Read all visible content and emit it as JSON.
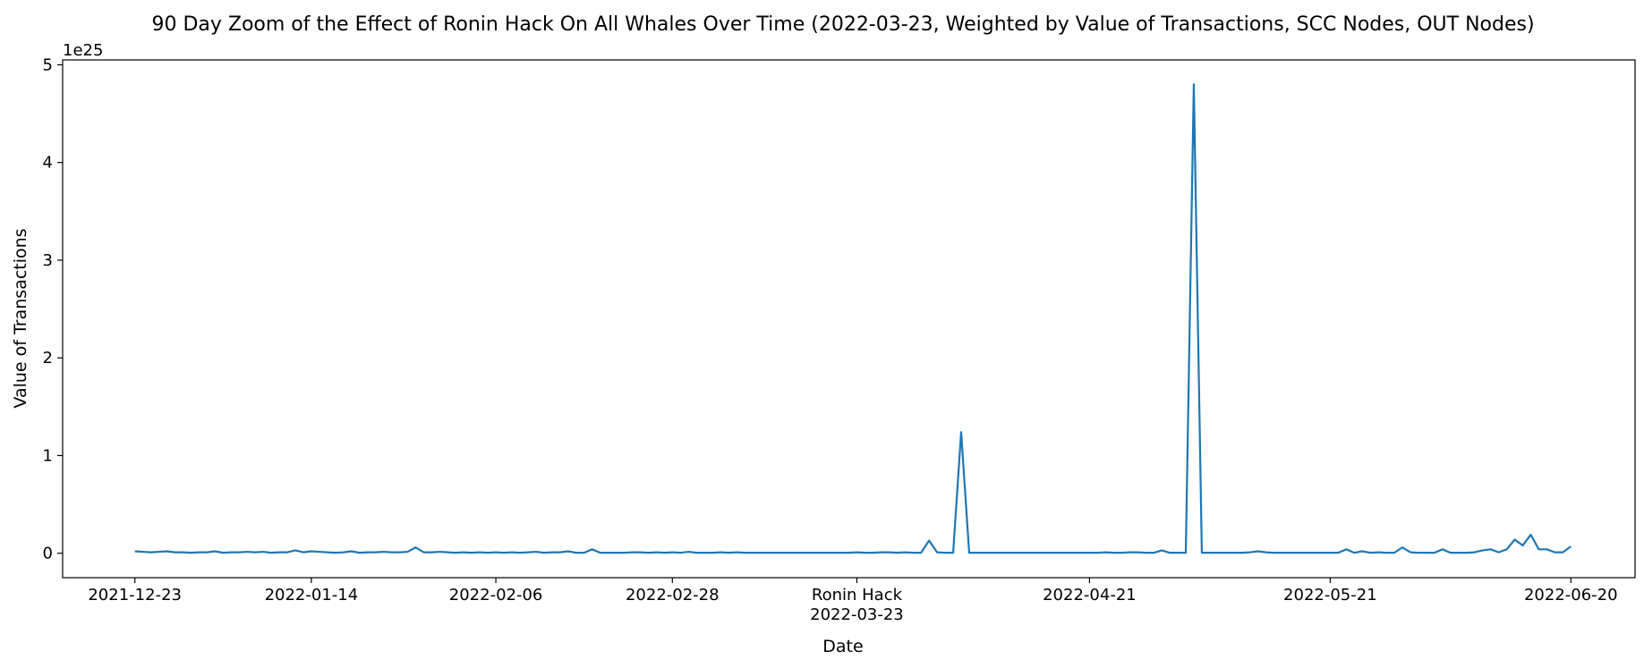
{
  "chart_data": {
    "type": "line",
    "title": "90 Day Zoom of the Effect of Ronin Hack On All Whales Over Time (2022-03-23, Weighted by Value of Transactions, SCC Nodes, OUT Nodes)",
    "xlabel": "Date",
    "ylabel": "Value of Transactions",
    "y_offset_text": "1e25",
    "y_scale_exponent": 25,
    "x_range": [
      "2021-12-14",
      "2022-06-28"
    ],
    "ylim": [
      -0.25,
      5.05
    ],
    "y_ticks": [
      0,
      1,
      2,
      3,
      4,
      5
    ],
    "x_ticks": [
      {
        "date": "2021-12-23",
        "label": "2021-12-23"
      },
      {
        "date": "2022-01-14",
        "label": "2022-01-14"
      },
      {
        "date": "2022-02-06",
        "label": "2022-02-06"
      },
      {
        "date": "2022-02-28",
        "label": "2022-02-28"
      },
      {
        "date": "2022-03-23",
        "label": "2022-03-23"
      },
      {
        "date": "2022-04-21",
        "label": "2022-04-21"
      },
      {
        "date": "2022-05-21",
        "label": "2022-05-21"
      },
      {
        "date": "2022-06-20",
        "label": "2022-06-20"
      }
    ],
    "annotation": {
      "date": "2022-03-23",
      "label": "Ronin Hack"
    },
    "grid": false,
    "legend": "none",
    "series": [
      {
        "color": "#1f77b4",
        "points": [
          [
            "2021-12-23",
            0.02
          ],
          [
            "2021-12-24",
            0.015
          ],
          [
            "2021-12-25",
            0.01
          ],
          [
            "2021-12-26",
            0.015
          ],
          [
            "2021-12-27",
            0.02
          ],
          [
            "2021-12-28",
            0.01
          ],
          [
            "2021-12-29",
            0.01
          ],
          [
            "2021-12-30",
            0.005
          ],
          [
            "2021-12-31",
            0.01
          ],
          [
            "2022-01-01",
            0.01
          ],
          [
            "2022-01-02",
            0.02
          ],
          [
            "2022-01-03",
            0.005
          ],
          [
            "2022-01-04",
            0.01
          ],
          [
            "2022-01-05",
            0.01
          ],
          [
            "2022-01-06",
            0.015
          ],
          [
            "2022-01-07",
            0.01
          ],
          [
            "2022-01-08",
            0.015
          ],
          [
            "2022-01-09",
            0.005
          ],
          [
            "2022-01-10",
            0.01
          ],
          [
            "2022-01-11",
            0.01
          ],
          [
            "2022-01-12",
            0.03
          ],
          [
            "2022-01-13",
            0.01
          ],
          [
            "2022-01-14",
            0.02
          ],
          [
            "2022-01-15",
            0.015
          ],
          [
            "2022-01-16",
            0.01
          ],
          [
            "2022-01-17",
            0.005
          ],
          [
            "2022-01-18",
            0.01
          ],
          [
            "2022-01-19",
            0.02
          ],
          [
            "2022-01-20",
            0.005
          ],
          [
            "2022-01-21",
            0.01
          ],
          [
            "2022-01-22",
            0.01
          ],
          [
            "2022-01-23",
            0.015
          ],
          [
            "2022-01-24",
            0.01
          ],
          [
            "2022-01-25",
            0.01
          ],
          [
            "2022-01-26",
            0.015
          ],
          [
            "2022-01-27",
            0.06
          ],
          [
            "2022-01-28",
            0.01
          ],
          [
            "2022-01-29",
            0.01
          ],
          [
            "2022-01-30",
            0.015
          ],
          [
            "2022-01-31",
            0.01
          ],
          [
            "2022-02-01",
            0.005
          ],
          [
            "2022-02-02",
            0.01
          ],
          [
            "2022-02-03",
            0.005
          ],
          [
            "2022-02-04",
            0.01
          ],
          [
            "2022-02-05",
            0.005
          ],
          [
            "2022-02-06",
            0.01
          ],
          [
            "2022-02-07",
            0.005
          ],
          [
            "2022-02-08",
            0.01
          ],
          [
            "2022-02-09",
            0.005
          ],
          [
            "2022-02-10",
            0.01
          ],
          [
            "2022-02-11",
            0.015
          ],
          [
            "2022-02-12",
            0.005
          ],
          [
            "2022-02-13",
            0.01
          ],
          [
            "2022-02-14",
            0.01
          ],
          [
            "2022-02-15",
            0.02
          ],
          [
            "2022-02-16",
            0.005
          ],
          [
            "2022-02-17",
            0.005
          ],
          [
            "2022-02-18",
            0.04
          ],
          [
            "2022-02-19",
            0.005
          ],
          [
            "2022-02-20",
            0.005
          ],
          [
            "2022-02-21",
            0.005
          ],
          [
            "2022-02-22",
            0.005
          ],
          [
            "2022-02-23",
            0.01
          ],
          [
            "2022-02-24",
            0.01
          ],
          [
            "2022-02-25",
            0.005
          ],
          [
            "2022-02-26",
            0.01
          ],
          [
            "2022-02-27",
            0.005
          ],
          [
            "2022-02-28",
            0.01
          ],
          [
            "2022-03-01",
            0.005
          ],
          [
            "2022-03-02",
            0.015
          ],
          [
            "2022-03-03",
            0.005
          ],
          [
            "2022-03-04",
            0.005
          ],
          [
            "2022-03-05",
            0.005
          ],
          [
            "2022-03-06",
            0.01
          ],
          [
            "2022-03-07",
            0.005
          ],
          [
            "2022-03-08",
            0.01
          ],
          [
            "2022-03-09",
            0.005
          ],
          [
            "2022-03-10",
            0.005
          ],
          [
            "2022-03-11",
            0.005
          ],
          [
            "2022-03-12",
            0.005
          ],
          [
            "2022-03-13",
            0.005
          ],
          [
            "2022-03-14",
            0.005
          ],
          [
            "2022-03-15",
            0.005
          ],
          [
            "2022-03-16",
            0.005
          ],
          [
            "2022-03-17",
            0.005
          ],
          [
            "2022-03-18",
            0.005
          ],
          [
            "2022-03-19",
            0.005
          ],
          [
            "2022-03-20",
            0.005
          ],
          [
            "2022-03-21",
            0.005
          ],
          [
            "2022-03-22",
            0.005
          ],
          [
            "2022-03-23",
            0.01
          ],
          [
            "2022-03-24",
            0.005
          ],
          [
            "2022-03-25",
            0.005
          ],
          [
            "2022-03-26",
            0.01
          ],
          [
            "2022-03-27",
            0.01
          ],
          [
            "2022-03-28",
            0.005
          ],
          [
            "2022-03-29",
            0.01
          ],
          [
            "2022-03-30",
            0.005
          ],
          [
            "2022-03-31",
            0.005
          ],
          [
            "2022-04-01",
            0.13
          ],
          [
            "2022-04-02",
            0.01
          ],
          [
            "2022-04-03",
            0.005
          ],
          [
            "2022-04-04",
            0.005
          ],
          [
            "2022-04-05",
            1.24
          ],
          [
            "2022-04-06",
            0.005
          ],
          [
            "2022-04-07",
            0.005
          ],
          [
            "2022-04-08",
            0.005
          ],
          [
            "2022-04-09",
            0.005
          ],
          [
            "2022-04-10",
            0.005
          ],
          [
            "2022-04-11",
            0.005
          ],
          [
            "2022-04-12",
            0.005
          ],
          [
            "2022-04-13",
            0.005
          ],
          [
            "2022-04-14",
            0.005
          ],
          [
            "2022-04-15",
            0.005
          ],
          [
            "2022-04-16",
            0.005
          ],
          [
            "2022-04-17",
            0.005
          ],
          [
            "2022-04-18",
            0.005
          ],
          [
            "2022-04-19",
            0.005
          ],
          [
            "2022-04-20",
            0.005
          ],
          [
            "2022-04-21",
            0.005
          ],
          [
            "2022-04-22",
            0.005
          ],
          [
            "2022-04-23",
            0.01
          ],
          [
            "2022-04-24",
            0.005
          ],
          [
            "2022-04-25",
            0.005
          ],
          [
            "2022-04-26",
            0.01
          ],
          [
            "2022-04-27",
            0.01
          ],
          [
            "2022-04-28",
            0.005
          ],
          [
            "2022-04-29",
            0.005
          ],
          [
            "2022-04-30",
            0.03
          ],
          [
            "2022-05-01",
            0.005
          ],
          [
            "2022-05-02",
            0.005
          ],
          [
            "2022-05-03",
            0.005
          ],
          [
            "2022-05-04",
            4.8
          ],
          [
            "2022-05-05",
            0.005
          ],
          [
            "2022-05-06",
            0.005
          ],
          [
            "2022-05-07",
            0.005
          ],
          [
            "2022-05-08",
            0.005
          ],
          [
            "2022-05-09",
            0.005
          ],
          [
            "2022-05-10",
            0.005
          ],
          [
            "2022-05-11",
            0.01
          ],
          [
            "2022-05-12",
            0.02
          ],
          [
            "2022-05-13",
            0.01
          ],
          [
            "2022-05-14",
            0.005
          ],
          [
            "2022-05-15",
            0.005
          ],
          [
            "2022-05-16",
            0.005
          ],
          [
            "2022-05-17",
            0.005
          ],
          [
            "2022-05-18",
            0.005
          ],
          [
            "2022-05-19",
            0.005
          ],
          [
            "2022-05-20",
            0.005
          ],
          [
            "2022-05-21",
            0.005
          ],
          [
            "2022-05-22",
            0.005
          ],
          [
            "2022-05-23",
            0.04
          ],
          [
            "2022-05-24",
            0.005
          ],
          [
            "2022-05-25",
            0.02
          ],
          [
            "2022-05-26",
            0.005
          ],
          [
            "2022-05-27",
            0.01
          ],
          [
            "2022-05-28",
            0.005
          ],
          [
            "2022-05-29",
            0.005
          ],
          [
            "2022-05-30",
            0.06
          ],
          [
            "2022-05-31",
            0.01
          ],
          [
            "2022-06-01",
            0.005
          ],
          [
            "2022-06-02",
            0.005
          ],
          [
            "2022-06-03",
            0.005
          ],
          [
            "2022-06-04",
            0.04
          ],
          [
            "2022-06-05",
            0.005
          ],
          [
            "2022-06-06",
            0.005
          ],
          [
            "2022-06-07",
            0.005
          ],
          [
            "2022-06-08",
            0.01
          ],
          [
            "2022-06-09",
            0.03
          ],
          [
            "2022-06-10",
            0.04
          ],
          [
            "2022-06-11",
            0.01
          ],
          [
            "2022-06-12",
            0.04
          ],
          [
            "2022-06-13",
            0.14
          ],
          [
            "2022-06-14",
            0.08
          ],
          [
            "2022-06-15",
            0.19
          ],
          [
            "2022-06-16",
            0.04
          ],
          [
            "2022-06-17",
            0.04
          ],
          [
            "2022-06-18",
            0.01
          ],
          [
            "2022-06-19",
            0.01
          ],
          [
            "2022-06-20",
            0.07
          ]
        ]
      }
    ]
  }
}
